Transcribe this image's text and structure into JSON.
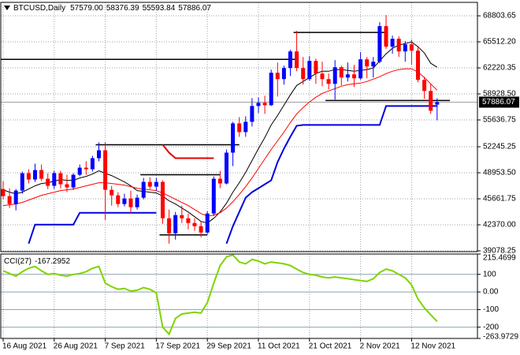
{
  "chart_data": {
    "type": "candlestick",
    "symbol": "BTCUSD,Daily",
    "header_labels": {
      "open": "57579.00"
    },
    "categories": [
      "16 Aug 2021",
      null,
      null,
      null,
      null,
      null,
      null,
      null,
      "26 Aug 2021",
      null,
      null,
      null,
      null,
      null,
      null,
      null,
      "7 Sep 2021",
      null,
      null,
      null,
      null,
      null,
      null,
      null,
      "17 Sep 2021",
      null,
      null,
      null,
      null,
      null,
      null,
      null,
      "29 Sep 2021",
      null,
      null,
      null,
      null,
      null,
      null,
      null,
      "11 Oct 2021",
      null,
      null,
      null,
      null,
      null,
      null,
      null,
      "21 Oct 2021",
      null,
      null,
      null,
      null,
      null,
      null,
      null,
      "2 Nov 2021",
      null,
      null,
      null,
      null,
      null,
      null,
      null,
      "12 Nov 2021",
      null,
      null,
      null,
      null
    ],
    "open": [
      46900,
      46000,
      45000,
      46700,
      48900,
      48100,
      49300,
      48200,
      47300,
      48900,
      47500,
      47100,
      48700,
      49600,
      49400,
      50800,
      51800,
      46800,
      46100,
      45000,
      45700,
      44600,
      45800,
      47800,
      47200,
      47800,
      43200,
      41300,
      43600,
      43200,
      42600,
      42200,
      41400,
      43800,
      48200,
      47600,
      51500,
      55200,
      54100,
      55400,
      57400,
      57800,
      57500,
      61600,
      60800,
      62200,
      64300,
      62200,
      60800,
      63100,
      61500,
      60800,
      60200,
      62300,
      61000,
      61400,
      60900,
      63300,
      62400,
      63000,
      67500,
      64900,
      65900,
      64300,
      65200,
      64400,
      60700,
      59300,
      57579
    ],
    "high": [
      47900,
      47000,
      46900,
      49100,
      49400,
      50100,
      50000,
      48900,
      49200,
      49200,
      48700,
      48900,
      50000,
      50400,
      51100,
      52800,
      52800,
      47300,
      46500,
      46300,
      46700,
      46200,
      48300,
      48400,
      48300,
      48000,
      44300,
      44000,
      44800,
      43800,
      43200,
      42800,
      44100,
      48500,
      49200,
      51900,
      55400,
      56000,
      56100,
      58400,
      58500,
      58700,
      62000,
      62900,
      62500,
      64500,
      66900,
      63600,
      63700,
      63400,
      63000,
      61500,
      63200,
      62500,
      62900,
      62600,
      64200,
      63600,
      63600,
      68000,
      68900,
      66300,
      66200,
      65600,
      65800,
      65000,
      61100,
      60200,
      58376.39
    ],
    "low": [
      45600,
      44500,
      44200,
      46300,
      47600,
      47800,
      47900,
      46900,
      46900,
      47000,
      46500,
      46800,
      48500,
      48700,
      49100,
      50400,
      43000,
      44800,
      44600,
      44700,
      43800,
      44300,
      45600,
      46900,
      46700,
      42500,
      40000,
      40500,
      42600,
      41800,
      41600,
      40800,
      41200,
      43500,
      47000,
      47500,
      49800,
      53500,
      53500,
      54800,
      56500,
      56400,
      57400,
      58600,
      60100,
      61200,
      61800,
      60100,
      60600,
      60200,
      59900,
      59500,
      58200,
      60000,
      60500,
      59800,
      60700,
      60900,
      61000,
      62800,
      64600,
      64000,
      63600,
      63000,
      62600,
      60400,
      58300,
      56400,
      55593.84
    ],
    "close": [
      46000,
      45000,
      46700,
      48900,
      48100,
      49300,
      48200,
      47300,
      48900,
      47500,
      47100,
      48700,
      49600,
      49400,
      50800,
      51800,
      46800,
      46100,
      45000,
      45700,
      44600,
      45800,
      47800,
      47200,
      47800,
      43200,
      41300,
      43600,
      43200,
      42600,
      42200,
      41400,
      43800,
      48200,
      47600,
      51500,
      55200,
      54100,
      55400,
      57400,
      57800,
      57500,
      61600,
      60800,
      62200,
      64300,
      62200,
      60800,
      63100,
      61500,
      60800,
      60200,
      62300,
      61000,
      61400,
      60900,
      63300,
      62400,
      63000,
      67500,
      64900,
      65900,
      64300,
      65200,
      64400,
      60700,
      59300,
      56800,
      57886.07
    ],
    "up_color": "#0000ff",
    "down_color": "#ff0000",
    "ylim": [
      38978,
      70505
    ],
    "yticks": [
      68803.65,
      {
        "value": 65512.2,
        "label": "65512.20"
      },
      62220.35,
      {
        "value": 58928.5,
        "label": "58928.50"
      },
      55636.75,
      52245.25,
      {
        "value": 48953.5,
        "label": "48953.50"
      },
      45661.75,
      {
        "value": 42370,
        "label": "42370.00"
      },
      39078.25
    ],
    "grid": true,
    "overlays": [
      {
        "color": "#000000",
        "width": 1,
        "values": [
          46800,
          46500,
          46300,
          46500,
          46900,
          47300,
          47600,
          47700,
          47900,
          48100,
          48000,
          48000,
          48300,
          48500,
          48800,
          49200,
          48900,
          48600,
          48200,
          47800,
          47300,
          46700,
          46600,
          46500,
          46400,
          46000,
          45400,
          45000,
          44500,
          44000,
          43400,
          42800,
          42600,
          43200,
          44000,
          45100,
          46500,
          47700,
          49000,
          50500,
          52000,
          53400,
          55000,
          56200,
          57500,
          58800,
          60000,
          60500,
          61000,
          61500,
          61800,
          61800,
          62000,
          62000,
          61900,
          61800,
          61900,
          62000,
          62200,
          63100,
          64000,
          64700,
          65100,
          65300,
          65500,
          64900,
          64100,
          62800,
          62300
        ]
      },
      {
        "color": "#ff0000",
        "width": 1,
        "values": [
          44800,
          44900,
          45000,
          45200,
          45500,
          45800,
          46100,
          46300,
          46500,
          46700,
          46800,
          46900,
          47100,
          47300,
          47500,
          47700,
          47700,
          47600,
          47500,
          47400,
          47200,
          47000,
          46900,
          46800,
          46700,
          46400,
          46000,
          45600,
          45200,
          44800,
          44300,
          43800,
          43500,
          43600,
          43900,
          44500,
          45300,
          46200,
          47200,
          48300,
          49500,
          50700,
          51900,
          53000,
          54100,
          55300,
          56400,
          57200,
          57900,
          58500,
          59000,
          59300,
          59600,
          59900,
          60100,
          60200,
          60300,
          60500,
          60800,
          61100,
          61500,
          61800,
          62000,
          62100,
          62100,
          61700,
          61000,
          60200,
          59400
        ]
      },
      {
        "color": "#e00000",
        "width": 2,
        "values": [
          null,
          null,
          null,
          null,
          null,
          null,
          null,
          null,
          null,
          null,
          null,
          null,
          null,
          null,
          null,
          null,
          null,
          null,
          null,
          null,
          null,
          null,
          null,
          null,
          null,
          52500,
          51500,
          50800,
          50800,
          50800,
          50800,
          50800,
          50800,
          50800,
          null,
          null,
          null,
          null,
          null,
          null,
          null,
          null,
          null,
          null,
          null,
          null,
          null,
          null,
          null,
          null,
          null,
          null,
          null,
          null,
          null,
          null,
          null,
          null,
          null,
          null,
          null,
          null,
          null,
          null,
          null,
          null,
          null,
          null,
          null
        ]
      },
      {
        "color": "#0000e0",
        "width": 2,
        "values": [
          null,
          null,
          null,
          null,
          40000,
          42400,
          42400,
          42400,
          42400,
          42400,
          42400,
          42400,
          43900,
          43900,
          43900,
          43900,
          43900,
          43900,
          43900,
          43900,
          43900,
          43900,
          43900,
          43900,
          43900,
          null,
          null,
          null,
          null,
          null,
          null,
          null,
          null,
          null,
          null,
          40000,
          42200,
          44000,
          45800,
          46500,
          47000,
          47500,
          48000,
          50300,
          52000,
          53500,
          54900,
          55000,
          55000,
          55000,
          55000,
          55000,
          55000,
          55000,
          55000,
          55000,
          55000,
          55000,
          55000,
          55000,
          57400,
          57400,
          57400,
          57400,
          57400,
          57400,
          57400,
          57400,
          57400
        ]
      }
    ],
    "levels": [
      {
        "value": 63300,
        "x": [
          0,
          46
        ]
      },
      {
        "value": 66700,
        "x": [
          46,
          60
        ]
      },
      {
        "value": 52500,
        "x": [
          15,
          37
        ]
      },
      {
        "value": 48700,
        "x": [
          22,
          34
        ]
      },
      {
        "value": 41100,
        "x": [
          25,
          32
        ]
      },
      {
        "value": 58100,
        "x": [
          51,
          70
        ]
      }
    ],
    "level_color": "#000000",
    "indicator": {
      "type": "line",
      "title": "CCI(27)",
      "color": "#7fd400",
      "values": [
        120,
        105,
        90,
        115,
        135,
        145,
        120,
        100,
        105,
        95,
        90,
        100,
        105,
        115,
        135,
        145,
        50,
        30,
        15,
        20,
        5,
        10,
        25,
        15,
        -5,
        -200,
        -240,
        -150,
        -125,
        -120,
        -115,
        -120,
        -60,
        50,
        150,
        200,
        210,
        170,
        160,
        185,
        175,
        160,
        170,
        165,
        160,
        150,
        130,
        110,
        100,
        95,
        85,
        80,
        85,
        80,
        75,
        70,
        65,
        60,
        75,
        110,
        130,
        120,
        100,
        80,
        40,
        -40,
        -90,
        -130,
        -167.2952
      ],
      "ylim": [
        -263.9729,
        215.4699
      ],
      "yticks": [
        215.4699,
        100,
        {
          "value": 0,
          "label": "0.00"
        },
        -100,
        -200,
        -263.9729
      ]
    }
  }
}
